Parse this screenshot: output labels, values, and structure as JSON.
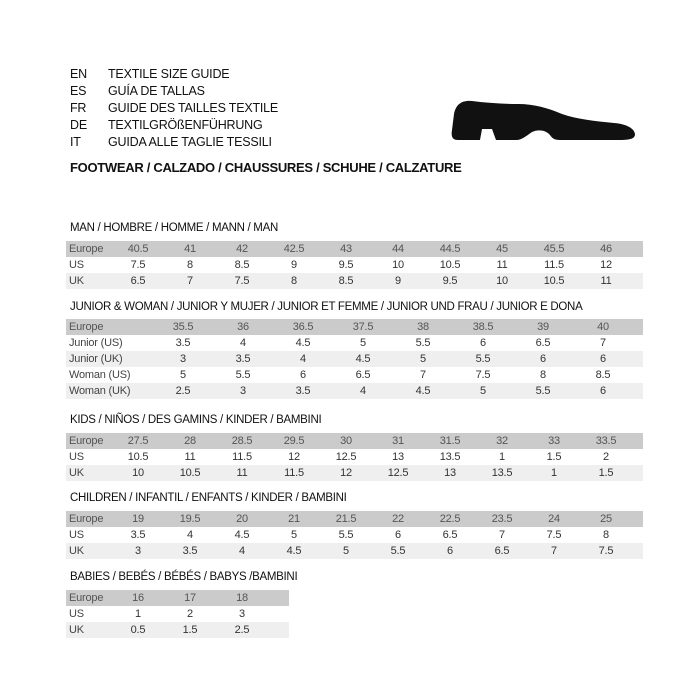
{
  "header": {
    "languages": [
      {
        "code": "EN",
        "text": "TEXTILE SIZE GUIDE"
      },
      {
        "code": "ES",
        "text": "GUÍA DE TALLAS"
      },
      {
        "code": "FR",
        "text": "GUIDE DES TAILLES TEXTILE"
      },
      {
        "code": "DE",
        "text": "TEXTILGRÖßENFÜHRUNG"
      },
      {
        "code": "IT",
        "text": "GUIDA ALLE TAGLIE TESSILI"
      }
    ],
    "footwear": "FOOTWEAR / CALZADO / CHAUSSURES / SCHUHE / CALZATURE",
    "icon": "shoe-icon"
  },
  "colors": {
    "header_row": "#cbcbcb",
    "alt_row": "#efefef"
  },
  "sections": [
    {
      "title": "MAN / HOMBRE / HOMME / MANN / MAN",
      "rows": [
        {
          "label": "Europe",
          "values": [
            "40.5",
            "41",
            "42",
            "42.5",
            "43",
            "44",
            "44.5",
            "45",
            "45.5",
            "46"
          ]
        },
        {
          "label": "US",
          "values": [
            "7.5",
            "8",
            "8.5",
            "9",
            "9.5",
            "10",
            "10.5",
            "11",
            "11.5",
            "12"
          ]
        },
        {
          "label": "UK",
          "values": [
            "6.5",
            "7",
            "7.5",
            "8",
            "8.5",
            "9",
            "9.5",
            "10",
            "10.5",
            "11"
          ]
        }
      ]
    },
    {
      "title": "JUNIOR & WOMAN / JUNIOR Y MUJER / JUNIOR ET FEMME / JUNIOR UND FRAU / JUNIOR E DONA",
      "rows": [
        {
          "label": "Europe",
          "values": [
            "35.5",
            "36",
            "36.5",
            "37.5",
            "38",
            "38.5",
            "39",
            "40"
          ]
        },
        {
          "label": "Junior (US)",
          "values": [
            "3.5",
            "4",
            "4.5",
            "5",
            "5.5",
            "6",
            "6.5",
            "7"
          ]
        },
        {
          "label": "Junior (UK)",
          "values": [
            "3",
            "3.5",
            "4",
            "4.5",
            "5",
            "5.5",
            "6",
            "6"
          ]
        },
        {
          "label": "Woman (US)",
          "values": [
            "5",
            "5.5",
            "6",
            "6.5",
            "7",
            "7.5",
            "8",
            "8.5"
          ]
        },
        {
          "label": "Woman (UK)",
          "values": [
            "2.5",
            "3",
            "3.5",
            "4",
            "4.5",
            "5",
            "5.5",
            "6"
          ]
        }
      ]
    },
    {
      "title": "KIDS / NIÑOS / DES GAMINS / KINDER / BAMBINI",
      "rows": [
        {
          "label": "Europe",
          "values": [
            "27.5",
            "28",
            "28.5",
            "29.5",
            "30",
            "31",
            "31.5",
            "32",
            "33",
            "33.5"
          ]
        },
        {
          "label": "US",
          "values": [
            "10.5",
            "11",
            "11.5",
            "12",
            "12.5",
            "13",
            "13.5",
            "1",
            "1.5",
            "2"
          ]
        },
        {
          "label": "UK",
          "values": [
            "10",
            "10.5",
            "11",
            "11.5",
            "12",
            "12.5",
            "13",
            "13.5",
            "1",
            "1.5"
          ]
        }
      ]
    },
    {
      "title": "CHILDREN / INFANTIL / ENFANTS / KINDER / BAMBINI",
      "rows": [
        {
          "label": "Europe",
          "values": [
            "19",
            "19.5",
            "20",
            "21",
            "21.5",
            "22",
            "22.5",
            "23.5",
            "24",
            "25"
          ]
        },
        {
          "label": "US",
          "values": [
            "3.5",
            "4",
            "4.5",
            "5",
            "5.5",
            "6",
            "6.5",
            "7",
            "7.5",
            "8"
          ]
        },
        {
          "label": "UK",
          "values": [
            "3",
            "3.5",
            "4",
            "4.5",
            "5",
            "5.5",
            "6",
            "6.5",
            "7",
            "7.5"
          ]
        }
      ]
    },
    {
      "title": "BABIES  / BEBÉS / BÉBÉS / BABYS /BAMBINI",
      "rows": [
        {
          "label": "Europe",
          "values": [
            "16",
            "17",
            "18"
          ]
        },
        {
          "label": "US",
          "values": [
            "1",
            "2",
            "3"
          ]
        },
        {
          "label": "UK",
          "values": [
            "0.5",
            "1.5",
            "2.5"
          ]
        }
      ]
    }
  ]
}
